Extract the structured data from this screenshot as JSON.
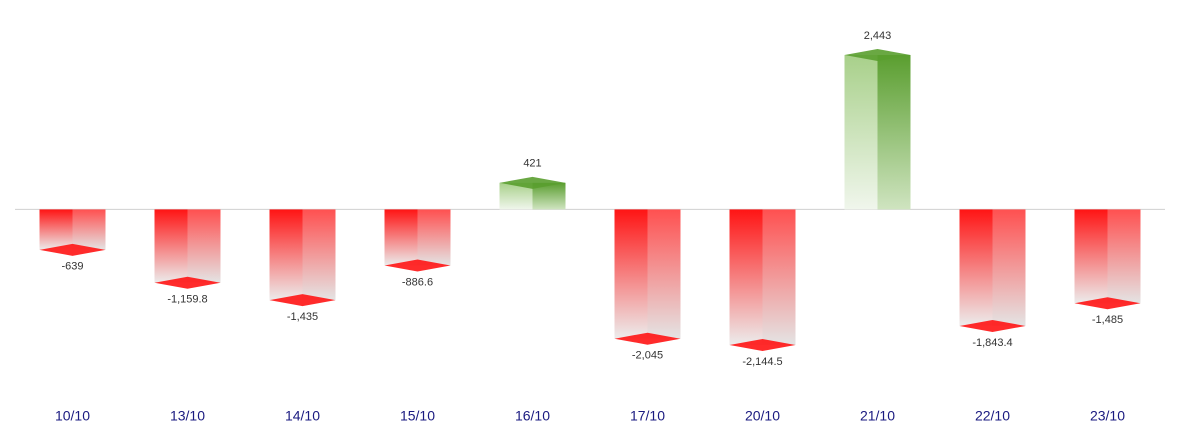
{
  "chart_data": {
    "type": "bar",
    "categories": [
      "10/10",
      "13/10",
      "14/10",
      "15/10",
      "16/10",
      "17/10",
      "20/10",
      "21/10",
      "22/10",
      "23/10"
    ],
    "values": [
      -639,
      -1159.8,
      -1435,
      -886.6,
      421,
      -2045,
      -2144.5,
      2443,
      -1843.4,
      -1485
    ],
    "value_labels": [
      "-639",
      "-1,159.8",
      "-1,435",
      "-886.6",
      "421",
      "-2,045",
      "-2,144.5",
      "2,443",
      "-1,843.4",
      "-1,485"
    ],
    "negative_color": "#ff1414",
    "positive_color": "#5a9e2f"
  }
}
